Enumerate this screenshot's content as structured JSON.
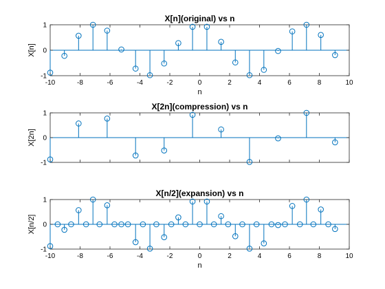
{
  "colors": {
    "stem": "#0072bd",
    "axes": "#262626",
    "background": "#ffffff"
  },
  "chart_data": [
    {
      "type": "stem",
      "title": "X[n](original) vs n",
      "xlabel": "n",
      "ylabel": "X[n]",
      "xlim": [
        -10,
        10
      ],
      "ylim": [
        -1,
        1
      ],
      "xticks": [
        -10,
        -8,
        -6,
        -4,
        -2,
        0,
        2,
        4,
        6,
        8,
        10
      ],
      "yticks": [
        -1,
        0,
        1
      ],
      "x": [
        -10,
        -9.05,
        -8.1,
        -7.14,
        -6.19,
        -5.24,
        -4.29,
        -3.33,
        -2.38,
        -1.43,
        -0.48,
        0.48,
        1.43,
        2.38,
        3.33,
        4.29,
        5.24,
        6.19,
        7.14,
        8.1,
        9.05
      ],
      "values": [
        -0.88,
        -0.22,
        0.57,
        1.0,
        0.77,
        0.03,
        -0.72,
        -0.98,
        -0.52,
        0.28,
        0.92,
        0.92,
        0.33,
        -0.48,
        -0.98,
        -0.77,
        -0.03,
        0.74,
        1.0,
        0.6,
        -0.19
      ]
    },
    {
      "type": "stem",
      "title": "X[2n](compression) vs n",
      "xlabel": "",
      "ylabel": "X[2n]",
      "xlim": [
        -10,
        10
      ],
      "ylim": [
        -1,
        1
      ],
      "xticks": [],
      "yticks": [
        -1,
        0,
        1
      ],
      "x": [
        -10,
        -8.1,
        -6.19,
        -4.29,
        -2.38,
        -0.48,
        1.43,
        3.33,
        5.24,
        7.14,
        9.05
      ],
      "values": [
        -0.88,
        0.57,
        0.77,
        -0.72,
        -0.52,
        0.92,
        0.33,
        -0.98,
        -0.03,
        1.0,
        -0.19
      ]
    },
    {
      "type": "stem",
      "title": "X[n/2](expansion) vs n",
      "xlabel": "n",
      "ylabel": "X[n/2]",
      "xlim": [
        -10,
        10
      ],
      "ylim": [
        -1,
        1
      ],
      "xticks": [
        -10,
        -8,
        -6,
        -4,
        -2,
        0,
        2,
        4,
        6,
        8,
        10
      ],
      "yticks": [
        -1,
        0,
        1
      ],
      "x": [
        -10,
        -9.5,
        -9.05,
        -8.6,
        -8.1,
        -7.6,
        -7.14,
        -6.7,
        -6.19,
        -5.7,
        -5.24,
        -4.8,
        -4.29,
        -3.8,
        -3.33,
        -2.9,
        -2.38,
        -1.9,
        -1.43,
        -0.95,
        -0.48,
        0,
        0.48,
        0.95,
        1.43,
        1.9,
        2.38,
        2.85,
        3.33,
        3.8,
        4.29,
        4.8,
        5.24,
        5.7,
        6.19,
        6.7,
        7.14,
        7.6,
        8.1,
        8.6,
        9.05
      ],
      "values": [
        -0.88,
        0,
        -0.22,
        0,
        0.57,
        0,
        1.0,
        0,
        0.77,
        0,
        0,
        0,
        -0.72,
        0,
        -0.98,
        0,
        -0.52,
        0,
        0.28,
        0,
        0.92,
        0,
        0.92,
        0,
        0.33,
        0,
        -0.48,
        0,
        -0.98,
        0,
        -0.77,
        0,
        -0.03,
        0,
        0.74,
        0,
        1.0,
        0,
        0.6,
        0,
        -0.19
      ]
    }
  ]
}
